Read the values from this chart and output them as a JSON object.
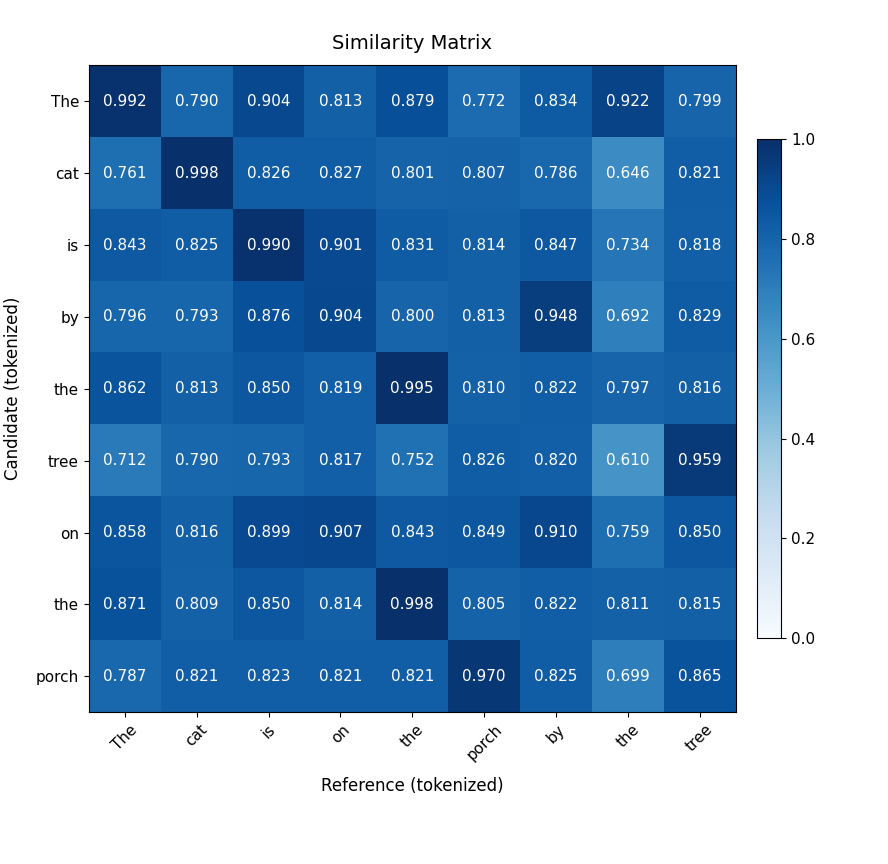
{
  "title": "Similarity Matrix",
  "xlabel": "Reference (tokenized)",
  "ylabel": "Candidate (tokenized)",
  "row_labels": [
    "The",
    "cat",
    "is",
    "by",
    "the",
    "tree",
    "on",
    "the",
    "porch"
  ],
  "col_labels": [
    "The",
    "cat",
    "is",
    "on",
    "the",
    "porch",
    "by",
    "the",
    "tree"
  ],
  "matrix": [
    [
      0.992,
      0.79,
      0.904,
      0.813,
      0.879,
      0.772,
      0.834,
      0.922,
      0.799
    ],
    [
      0.761,
      0.998,
      0.826,
      0.827,
      0.801,
      0.807,
      0.786,
      0.646,
      0.821
    ],
    [
      0.843,
      0.825,
      0.99,
      0.901,
      0.831,
      0.814,
      0.847,
      0.734,
      0.818
    ],
    [
      0.796,
      0.793,
      0.876,
      0.904,
      0.8,
      0.813,
      0.948,
      0.692,
      0.829
    ],
    [
      0.862,
      0.813,
      0.85,
      0.819,
      0.995,
      0.81,
      0.822,
      0.797,
      0.816
    ],
    [
      0.712,
      0.79,
      0.793,
      0.817,
      0.752,
      0.826,
      0.82,
      0.61,
      0.959
    ],
    [
      0.858,
      0.816,
      0.899,
      0.907,
      0.843,
      0.849,
      0.91,
      0.759,
      0.85
    ],
    [
      0.871,
      0.809,
      0.85,
      0.814,
      0.998,
      0.805,
      0.822,
      0.811,
      0.815
    ],
    [
      0.787,
      0.821,
      0.823,
      0.821,
      0.821,
      0.97,
      0.825,
      0.699,
      0.865
    ]
  ],
  "vmin": 0.0,
  "vmax": 1.0,
  "cmap": "Blues",
  "text_color": "white",
  "title_fontsize": 14,
  "label_fontsize": 12,
  "tick_fontsize": 11,
  "cell_fontsize": 11,
  "figwidth": 8.88,
  "figheight": 8.64,
  "dpi": 100
}
